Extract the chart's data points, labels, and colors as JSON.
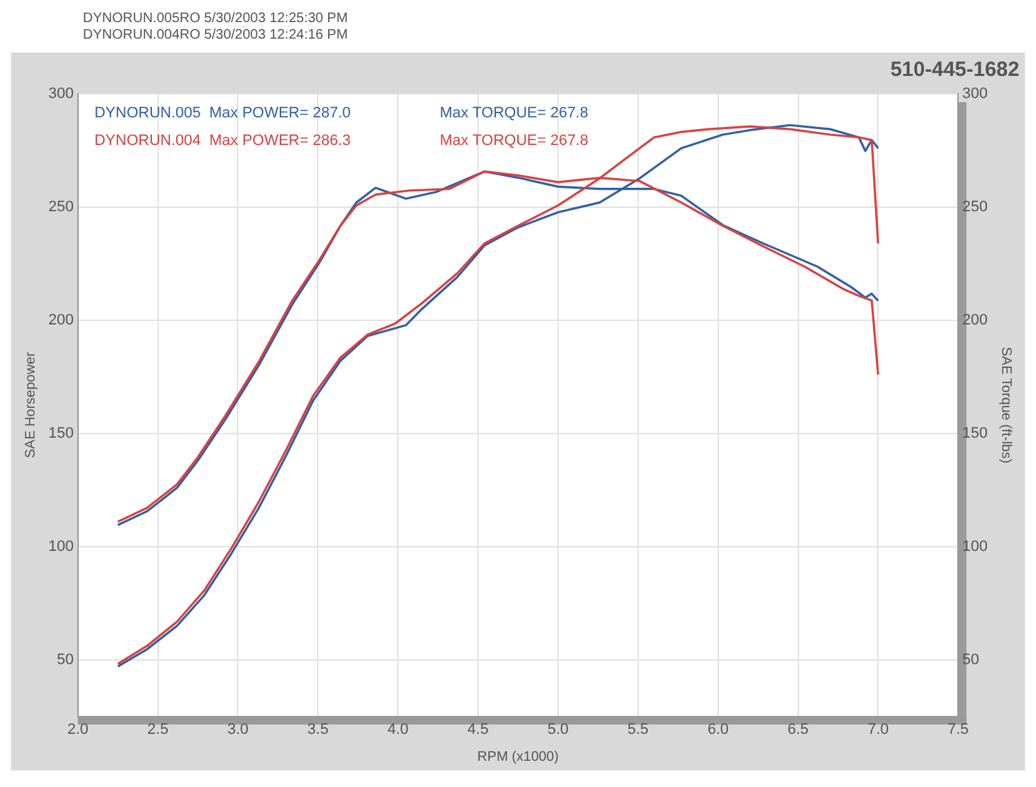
{
  "chart_data": {
    "type": "line",
    "title": "510-445-1682",
    "xlabel": "RPM (x1000)",
    "ylabel": "SAE Horsepower",
    "y2label": "SAE Torque (ft-lbs)",
    "annotations": [
      "DYNORUN.005RO  5/30/2003 12:25:30 PM",
      "DYNORUN.004RO  5/30/2003 12:24:16 PM",
      "DYNORUN.005  Max POWER= 287.0",
      "DYNORUN.004  Max POWER= 286.3",
      "Max TORQUE= 267.8",
      "Max TORQUE= 267.8"
    ],
    "xlim": [
      2,
      7.5
    ],
    "xticks": [
      {
        "value": 2,
        "label": "2.0"
      },
      {
        "value": 2.5,
        "label": "2.5"
      },
      {
        "value": 3,
        "label": "3.0"
      },
      {
        "value": 3.5,
        "label": "3.5"
      },
      {
        "value": 4,
        "label": "4.0"
      },
      {
        "value": 4.5,
        "label": "4.5"
      },
      {
        "value": 5,
        "label": "5.0"
      },
      {
        "value": 5.5,
        "label": "5.5"
      },
      {
        "value": 6,
        "label": "6.0"
      },
      {
        "value": 6.5,
        "label": "6.5"
      },
      {
        "value": 7,
        "label": "7.0"
      },
      {
        "value": 7.5,
        "label": "7.5"
      }
    ],
    "ylim": [
      25,
      300
    ],
    "yticks": [
      50,
      100,
      150,
      200,
      250,
      300
    ],
    "y2lim": [
      25,
      300
    ],
    "y2ticks": [
      50,
      100,
      150,
      200,
      250,
      300
    ],
    "grid": true,
    "legend": false,
    "marker": "none",
    "line_style": "solid",
    "series": [
      {
        "color": "#2f5fa8",
        "x": [
          2.25,
          2.43,
          2.62,
          2.79,
          2.96,
          3.13,
          3.3,
          3.47,
          3.64,
          3.81,
          4.05,
          4.15,
          4.37,
          4.54,
          4.75,
          5.0,
          5.26,
          5.51,
          5.77,
          6.03,
          6.2,
          6.45,
          6.7,
          6.88,
          6.92,
          6.96,
          7.0
        ],
        "values": [
          47,
          54.5,
          65,
          78.5,
          97,
          117,
          140,
          164.5,
          182,
          193,
          197.8,
          205,
          219,
          233,
          241,
          247.7,
          252,
          262.7,
          276,
          282,
          284,
          286.2,
          284.4,
          280.8,
          274.8,
          279.6,
          276
        ]
      },
      {
        "color": "#d94040",
        "x": [
          2.25,
          2.43,
          2.62,
          2.79,
          2.96,
          3.13,
          3.3,
          3.47,
          3.64,
          3.81,
          3.98,
          4.15,
          4.37,
          4.54,
          4.75,
          5.0,
          5.26,
          5.43,
          5.6,
          5.77,
          5.94,
          6.2,
          6.45,
          6.7,
          6.88,
          6.96,
          7.0
        ],
        "values": [
          48.2,
          56,
          66.8,
          80.6,
          99.3,
          119.7,
          142.5,
          166.6,
          183.4,
          193.6,
          198.4,
          207.5,
          220.7,
          233.9,
          241.7,
          250.7,
          262.7,
          271.8,
          280.8,
          283.2,
          284.4,
          285.6,
          284.4,
          282,
          280.8,
          279.6,
          233.9
        ]
      },
      {
        "color": "#2f5fa8",
        "axis": "y2",
        "x": [
          2.25,
          2.43,
          2.54,
          2.62,
          2.75,
          2.92,
          3.13,
          3.34,
          3.51,
          3.64,
          3.74,
          3.86,
          4.05,
          4.24,
          4.54,
          4.75,
          5.0,
          5.26,
          5.6,
          5.77,
          6.03,
          6.28,
          6.62,
          6.83,
          6.92,
          6.96,
          7.0
        ],
        "values": [
          109.5,
          115.5,
          121.5,
          126,
          138,
          156,
          180,
          207,
          225.5,
          241.7,
          252,
          258.5,
          253.7,
          256.7,
          265.7,
          263,
          259,
          258,
          258,
          255,
          242,
          234,
          223.7,
          214.7,
          210,
          211.7,
          208.6
        ]
      },
      {
        "color": "#d94040",
        "axis": "y2",
        "x": [
          2.25,
          2.43,
          2.54,
          2.62,
          2.75,
          2.92,
          3.13,
          3.34,
          3.51,
          3.64,
          3.74,
          3.86,
          4.07,
          4.32,
          4.54,
          4.75,
          5.0,
          5.26,
          5.51,
          5.77,
          6.03,
          6.28,
          6.54,
          6.79,
          6.89,
          6.96,
          7.0
        ],
        "values": [
          111,
          117,
          123,
          127.5,
          139.5,
          157.6,
          181.6,
          208.7,
          226.7,
          241.7,
          250.7,
          255.5,
          257.3,
          258,
          265.7,
          264,
          261,
          262.9,
          261.5,
          252,
          241.7,
          232.7,
          223.7,
          213.5,
          210.5,
          208.7,
          176
        ]
      }
    ]
  }
}
